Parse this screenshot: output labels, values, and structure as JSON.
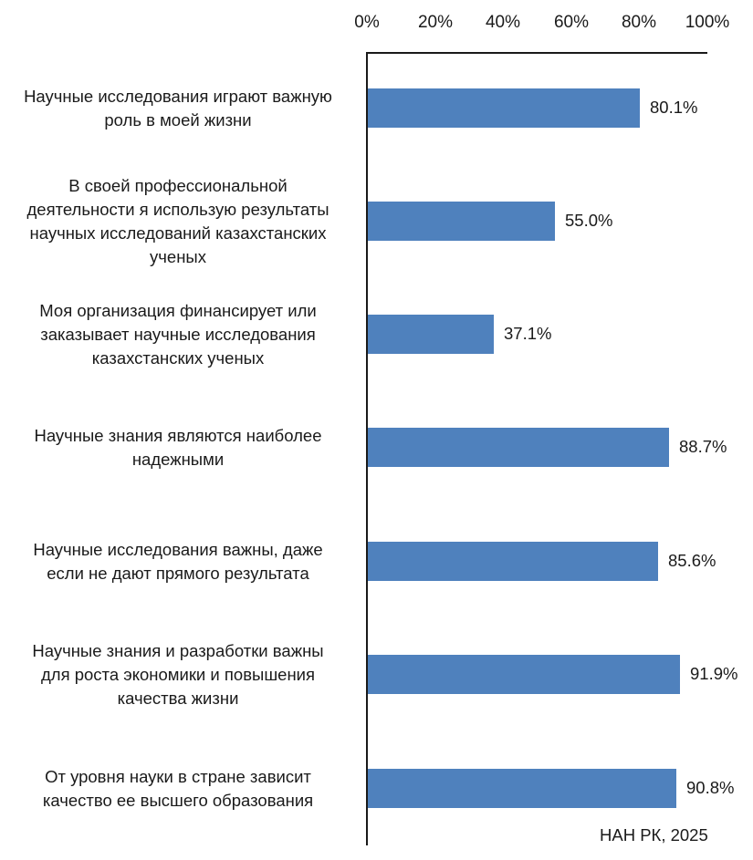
{
  "chart_data": {
    "type": "bar",
    "orientation": "horizontal",
    "title": "",
    "xlabel": "",
    "ylabel": "",
    "xlim": [
      0,
      100
    ],
    "x_ticks": [
      "0%",
      "20%",
      "40%",
      "60%",
      "80%",
      "100%"
    ],
    "x_axis_position": "top",
    "grid": false,
    "legend": null,
    "bar_color": "#4F81BD",
    "categories": [
      "Научные исследования играют важную роль в моей жизни",
      "В своей профессиональной деятельности я использую результаты научных исследований казахстанских ученых",
      "Моя организация финансирует или заказывает научные исследования казахстанских ученых",
      "Научные знания являются наиболее надежными",
      "Научные исследования важны, даже если не дают прямого результата",
      "Научные знания и разработки важны для роста экономики и повышения качества жизни",
      "От уровня науки в стране зависит качество ее высшего образования"
    ],
    "values": [
      80.1,
      55.0,
      37.1,
      88.7,
      85.6,
      91.9,
      90.8
    ],
    "value_labels": [
      "80.1%",
      "55.0%",
      "37.1%",
      "88.7%",
      "85.6%",
      "91.9%",
      "90.8%"
    ],
    "source": "НАН РК, 2025"
  },
  "category_lines": [
    [
      "Научные исследования играют важную",
      "роль в моей жизни"
    ],
    [
      "В своей профессиональной",
      "деятельности я использую результаты",
      "научных исследований казахстанских",
      "ученых"
    ],
    [
      "Моя организация финансирует или",
      "заказывает научные исследования",
      "казахстанских ученых"
    ],
    [
      "Научные знания являются наиболее",
      "надежными"
    ],
    [
      "Научные исследования важны, даже",
      "если не дают прямого результата"
    ],
    [
      "Научные знания и разработки важны",
      "для роста экономики и повышения",
      "качества жизни"
    ],
    [
      "От уровня науки в стране зависит",
      "качество ее высшего образования"
    ]
  ]
}
